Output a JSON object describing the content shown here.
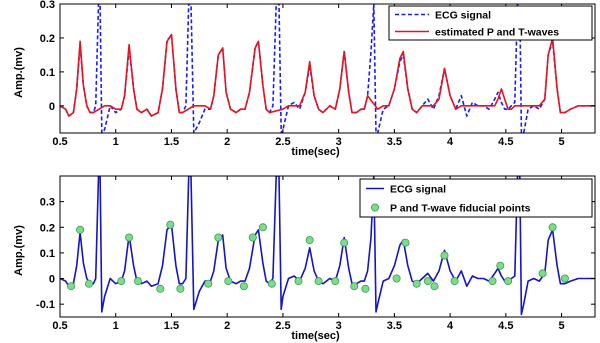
{
  "chart_data": [
    {
      "type": "line",
      "xlabel": "time(sec)",
      "ylabel": "Amp.(mv)",
      "xlim": [
        0.5,
        5.3
      ],
      "ylim": [
        -0.08,
        0.3
      ],
      "xticks": [
        0.5,
        1,
        1.5,
        2,
        2.5,
        3,
        3.5,
        4,
        4.5,
        5
      ],
      "yticks": [
        0,
        0.1,
        0.2,
        0.3
      ],
      "grid": false,
      "legend_position": "top-right",
      "series": [
        {
          "name": "ECG signal",
          "style": "dashed",
          "color": "#1a1aff",
          "x": [
            0.5,
            0.55,
            0.58,
            0.62,
            0.65,
            0.68,
            0.71,
            0.74,
            0.77,
            0.8,
            0.82,
            0.845,
            0.86,
            0.875,
            0.9,
            0.95,
            1.0,
            1.05,
            1.08,
            1.12,
            1.16,
            1.19,
            1.23,
            1.28,
            1.32,
            1.38,
            1.42,
            1.46,
            1.5,
            1.54,
            1.57,
            1.6,
            1.63,
            1.655,
            1.675,
            1.7,
            1.75,
            1.8,
            1.85,
            1.88,
            1.92,
            1.96,
            1.99,
            2.03,
            2.08,
            2.12,
            2.16,
            2.2,
            2.25,
            2.28,
            2.32,
            2.35,
            2.38,
            2.41,
            2.44,
            2.465,
            2.485,
            2.5,
            2.55,
            2.6,
            2.65,
            2.7,
            2.74,
            2.78,
            2.82,
            2.86,
            2.92,
            2.97,
            3.01,
            3.05,
            3.09,
            3.12,
            3.16,
            3.2,
            3.23,
            3.26,
            3.29,
            3.315,
            3.335,
            3.35,
            3.4,
            3.45,
            3.5,
            3.55,
            3.58,
            3.62,
            3.66,
            3.7,
            3.75,
            3.8,
            3.85,
            3.9,
            3.95,
            4.0,
            4.05,
            4.1,
            4.15,
            4.2,
            4.25,
            4.3,
            4.35,
            4.4,
            4.43,
            4.46,
            4.49,
            4.52,
            4.55,
            4.58,
            4.605,
            4.625,
            4.64,
            4.66,
            4.7,
            4.75,
            4.8,
            4.85,
            4.88,
            4.92,
            4.96,
            4.99,
            5.03,
            5.08,
            5.15,
            5.2,
            5.3
          ],
          "y": [
            0.0,
            -0.01,
            -0.03,
            -0.02,
            0.05,
            0.18,
            0.06,
            0.0,
            -0.02,
            -0.02,
            0.0,
            0.3,
            0.3,
            -0.08,
            -0.07,
            0.0,
            -0.02,
            -0.01,
            0.03,
            0.17,
            0.05,
            -0.01,
            -0.02,
            -0.01,
            -0.03,
            -0.02,
            0.05,
            0.19,
            0.21,
            0.05,
            -0.02,
            -0.02,
            0.0,
            0.3,
            0.3,
            -0.08,
            -0.05,
            -0.01,
            -0.01,
            0.03,
            0.15,
            0.17,
            0.04,
            -0.01,
            -0.02,
            -0.01,
            -0.01,
            0.04,
            0.17,
            0.19,
            0.06,
            -0.01,
            -0.02,
            0.0,
            0.3,
            0.3,
            -0.08,
            -0.07,
            0.0,
            0.01,
            -0.01,
            0.04,
            0.12,
            0.03,
            -0.01,
            -0.02,
            0.0,
            -0.01,
            0.05,
            0.16,
            0.04,
            -0.02,
            -0.02,
            -0.01,
            -0.01,
            0.03,
            0.16,
            0.3,
            -0.08,
            -0.08,
            -0.01,
            0.0,
            0.05,
            0.13,
            0.15,
            0.05,
            -0.01,
            -0.02,
            0.0,
            0.02,
            -0.01,
            0.03,
            0.11,
            0.03,
            -0.01,
            0.03,
            -0.03,
            0.01,
            0.0,
            0.0,
            -0.01,
            0.02,
            0.04,
            0.01,
            -0.01,
            -0.01,
            0.0,
            0.01,
            0.3,
            0.3,
            -0.08,
            -0.08,
            -0.01,
            0.0,
            -0.01,
            0.02,
            0.15,
            0.19,
            0.05,
            -0.02,
            -0.02,
            -0.01,
            0.0,
            0.0,
            0.0
          ]
        },
        {
          "name": "estimated P and T-waves",
          "style": "solid",
          "color": "#e8141b",
          "x": [
            0.5,
            0.55,
            0.58,
            0.62,
            0.65,
            0.68,
            0.71,
            0.74,
            0.77,
            0.8,
            0.9,
            0.95,
            1.0,
            1.05,
            1.08,
            1.12,
            1.16,
            1.19,
            1.23,
            1.28,
            1.32,
            1.38,
            1.42,
            1.46,
            1.5,
            1.54,
            1.57,
            1.6,
            1.7,
            1.75,
            1.8,
            1.85,
            1.88,
            1.92,
            1.96,
            1.99,
            2.03,
            2.08,
            2.12,
            2.16,
            2.2,
            2.25,
            2.28,
            2.32,
            2.35,
            2.38,
            2.5,
            2.55,
            2.6,
            2.65,
            2.7,
            2.74,
            2.78,
            2.82,
            2.86,
            2.92,
            2.97,
            3.01,
            3.05,
            3.09,
            3.12,
            3.16,
            3.2,
            3.23,
            3.26,
            3.35,
            3.4,
            3.45,
            3.5,
            3.55,
            3.58,
            3.62,
            3.66,
            3.7,
            3.75,
            3.8,
            3.85,
            3.9,
            3.95,
            4.0,
            4.05,
            4.1,
            4.15,
            4.2,
            4.25,
            4.3,
            4.35,
            4.4,
            4.43,
            4.46,
            4.49,
            4.52,
            4.55,
            4.58,
            4.66,
            4.7,
            4.75,
            4.8,
            4.85,
            4.88,
            4.92,
            4.96,
            4.99,
            5.03,
            5.08,
            5.15,
            5.2,
            5.3
          ],
          "y": [
            0.0,
            -0.01,
            -0.03,
            -0.02,
            0.05,
            0.19,
            0.06,
            0.0,
            -0.02,
            -0.02,
            0.0,
            0.0,
            -0.01,
            -0.01,
            0.03,
            0.18,
            0.05,
            -0.01,
            -0.02,
            -0.01,
            -0.03,
            -0.02,
            0.05,
            0.19,
            0.21,
            0.05,
            -0.02,
            -0.02,
            0.0,
            0.0,
            0.0,
            -0.01,
            0.03,
            0.15,
            0.17,
            0.04,
            -0.01,
            -0.02,
            -0.01,
            -0.01,
            0.04,
            0.17,
            0.19,
            0.06,
            -0.01,
            -0.02,
            -0.01,
            0.0,
            0.0,
            0.0,
            0.04,
            0.13,
            0.03,
            -0.01,
            -0.02,
            0.0,
            -0.01,
            0.05,
            0.16,
            0.04,
            -0.02,
            -0.02,
            -0.01,
            -0.01,
            0.03,
            -0.01,
            0.0,
            0.0,
            0.05,
            0.14,
            0.16,
            0.05,
            -0.01,
            -0.02,
            0.0,
            0.0,
            0.0,
            0.02,
            0.11,
            0.03,
            -0.01,
            0.0,
            0.0,
            0.0,
            0.0,
            0.0,
            0.0,
            0.0,
            0.02,
            0.05,
            0.02,
            -0.01,
            -0.01,
            0.0,
            0.0,
            0.0,
            0.0,
            0.0,
            0.02,
            0.15,
            0.2,
            0.05,
            -0.02,
            -0.02,
            -0.01,
            0.0,
            0.0,
            0.0
          ]
        }
      ]
    },
    {
      "type": "line",
      "xlabel": "time(sec)",
      "ylabel": "Amp.(mv)",
      "xlim": [
        0.5,
        5.3
      ],
      "ylim": [
        -0.15,
        0.4
      ],
      "xticks": [
        0.5,
        1,
        1.5,
        2,
        2.5,
        3,
        3.5,
        4,
        4.5,
        5
      ],
      "yticks": [
        -0.1,
        0,
        0.1,
        0.2,
        0.3
      ],
      "grid": false,
      "legend_position": "top-right",
      "series": [
        {
          "name": "ECG signal",
          "style": "solid",
          "color": "#1414c8",
          "x": [
            0.5,
            0.55,
            0.58,
            0.62,
            0.65,
            0.68,
            0.71,
            0.74,
            0.77,
            0.8,
            0.82,
            0.845,
            0.86,
            0.875,
            0.9,
            0.95,
            1.0,
            1.05,
            1.08,
            1.12,
            1.16,
            1.19,
            1.23,
            1.28,
            1.32,
            1.38,
            1.42,
            1.46,
            1.5,
            1.54,
            1.57,
            1.6,
            1.63,
            1.655,
            1.675,
            1.7,
            1.75,
            1.8,
            1.85,
            1.88,
            1.92,
            1.96,
            1.99,
            2.03,
            2.08,
            2.12,
            2.16,
            2.2,
            2.25,
            2.28,
            2.32,
            2.35,
            2.38,
            2.41,
            2.44,
            2.465,
            2.485,
            2.5,
            2.55,
            2.6,
            2.65,
            2.7,
            2.74,
            2.78,
            2.82,
            2.86,
            2.92,
            2.97,
            3.01,
            3.05,
            3.09,
            3.12,
            3.16,
            3.2,
            3.23,
            3.26,
            3.29,
            3.315,
            3.335,
            3.35,
            3.4,
            3.45,
            3.5,
            3.55,
            3.58,
            3.62,
            3.66,
            3.7,
            3.75,
            3.8,
            3.85,
            3.9,
            3.95,
            4.0,
            4.05,
            4.1,
            4.15,
            4.2,
            4.25,
            4.3,
            4.35,
            4.4,
            4.43,
            4.46,
            4.49,
            4.52,
            4.55,
            4.58,
            4.605,
            4.625,
            4.64,
            4.66,
            4.7,
            4.75,
            4.8,
            4.85,
            4.88,
            4.92,
            4.96,
            4.99,
            5.03,
            5.08,
            5.15,
            5.2,
            5.3
          ],
          "y": [
            0.0,
            -0.01,
            -0.03,
            -0.02,
            0.05,
            0.18,
            0.06,
            0.0,
            -0.02,
            -0.02,
            0.0,
            0.4,
            0.4,
            -0.13,
            -0.07,
            0.0,
            -0.02,
            -0.01,
            0.03,
            0.17,
            0.05,
            -0.01,
            -0.02,
            -0.01,
            -0.03,
            -0.02,
            0.05,
            0.19,
            0.21,
            0.05,
            -0.02,
            -0.02,
            0.0,
            0.4,
            0.4,
            -0.12,
            -0.05,
            -0.01,
            -0.01,
            0.03,
            0.15,
            0.17,
            0.04,
            -0.01,
            -0.02,
            -0.01,
            -0.01,
            0.04,
            0.17,
            0.19,
            0.06,
            -0.01,
            -0.02,
            0.0,
            0.4,
            0.4,
            -0.12,
            -0.07,
            0.0,
            0.01,
            -0.01,
            0.04,
            0.12,
            0.03,
            -0.01,
            -0.02,
            0.0,
            -0.01,
            0.05,
            0.16,
            0.04,
            -0.02,
            -0.02,
            -0.01,
            -0.01,
            0.03,
            0.16,
            0.4,
            -0.13,
            -0.1,
            -0.01,
            0.0,
            0.05,
            0.13,
            0.15,
            0.05,
            -0.01,
            -0.02,
            0.0,
            0.02,
            -0.01,
            0.03,
            0.11,
            0.03,
            -0.01,
            0.03,
            -0.03,
            0.01,
            0.0,
            0.0,
            -0.01,
            0.02,
            0.04,
            0.01,
            -0.01,
            -0.01,
            0.0,
            0.01,
            0.4,
            0.4,
            -0.14,
            -0.1,
            -0.01,
            0.0,
            -0.01,
            0.02,
            0.15,
            0.19,
            0.05,
            -0.02,
            -0.02,
            -0.01,
            0.0,
            0.0,
            0.0
          ]
        },
        {
          "name": "P and T-wave fiducial points",
          "type": "scatter",
          "color": "#7ddc8a",
          "x": [
            0.6,
            0.68,
            0.76,
            1.05,
            1.12,
            1.2,
            1.4,
            1.49,
            1.58,
            1.83,
            1.92,
            2.01,
            2.15,
            2.23,
            2.32,
            2.4,
            2.64,
            2.74,
            2.82,
            2.97,
            3.05,
            3.14,
            3.24,
            3.52,
            3.6,
            3.7,
            3.8,
            3.86,
            3.95,
            4.04,
            4.38,
            4.45,
            4.52,
            4.83,
            4.92,
            5.03
          ],
          "y": [
            -0.03,
            0.19,
            -0.02,
            -0.01,
            0.16,
            -0.01,
            -0.04,
            0.21,
            -0.04,
            -0.02,
            0.16,
            -0.01,
            -0.03,
            0.16,
            0.2,
            -0.02,
            -0.01,
            0.15,
            -0.01,
            -0.01,
            0.14,
            -0.03,
            -0.04,
            0.0,
            0.14,
            -0.02,
            -0.01,
            -0.03,
            0.09,
            -0.01,
            -0.01,
            0.05,
            -0.01,
            0.02,
            0.2,
            0.0
          ]
        }
      ]
    }
  ]
}
